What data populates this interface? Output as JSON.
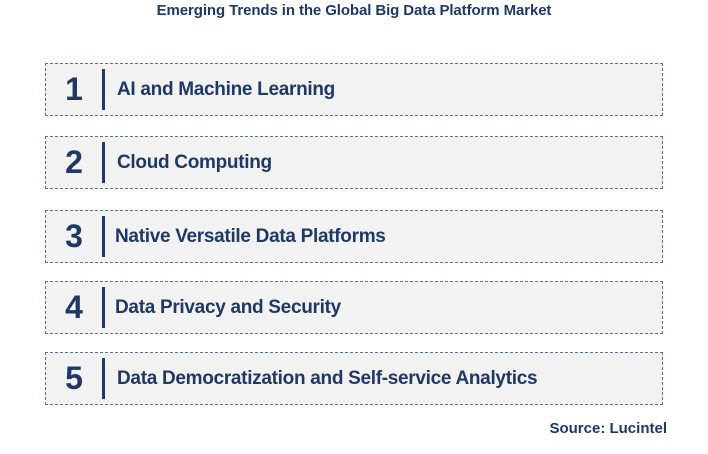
{
  "title": "Emerging Trends in the Global Big Data Platform Market",
  "trends": [
    {
      "number": "1",
      "label": "AI and Machine Learning"
    },
    {
      "number": "2",
      "label": "Cloud Computing"
    },
    {
      "number": "3",
      "label": "Native Versatile Data Platforms"
    },
    {
      "number": "4",
      "label": "Data Privacy and Security"
    },
    {
      "number": "5",
      "label": "Data Democratization and Self-service Analytics"
    }
  ],
  "source": "Source: Lucintel",
  "colors": {
    "text": "#1f3864",
    "box_fill": "#f2f2f2",
    "box_border": "#5b7290"
  }
}
